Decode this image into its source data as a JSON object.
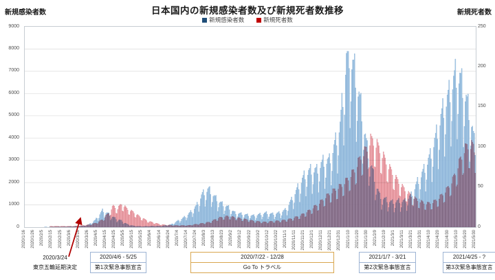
{
  "header": {
    "title": "日本国内の新規感染者数及び新規死者数推移",
    "left_axis_title": "新規感染者数",
    "right_axis_title": "新規死者数"
  },
  "legend": {
    "items": [
      {
        "label": "新規感染者数",
        "color": "#1F4E79"
      },
      {
        "label": "新規死者数",
        "color": "#C00000"
      }
    ]
  },
  "arrow_color": "#B00000",
  "chart_data": {
    "type": "bar",
    "title": "日本国内の新規感染者数及び新規死者数推移",
    "legend_position": "top-center",
    "grid": "horizontal-major-left-axis",
    "x_start": "2020/1/16",
    "x_end": "2021/5/30",
    "x_tick_interval_days": 10,
    "x_tick_labels": [
      "2020/1/16",
      "2020/1/26",
      "2020/2/5",
      "2020/2/15",
      "2020/2/25",
      "2020/3/6",
      "2020/3/16",
      "2020/3/26",
      "2020/4/5",
      "2020/4/15",
      "2020/4/25",
      "2020/5/5",
      "2020/5/15",
      "2020/5/25",
      "2020/6/4",
      "2020/6/14",
      "2020/6/24",
      "2020/7/4",
      "2020/7/14",
      "2020/7/24",
      "2020/8/3",
      "2020/8/13",
      "2020/8/23",
      "2020/9/2",
      "2020/9/12",
      "2020/9/22",
      "2020/10/2",
      "2020/10/12",
      "2020/10/22",
      "2020/11/1",
      "2020/11/11",
      "2020/11/21",
      "2020/12/1",
      "2020/12/11",
      "2020/12/21",
      "2020/12/31",
      "2021/1/10",
      "2021/1/20",
      "2021/1/30",
      "2021/2/9",
      "2021/2/19",
      "2021/3/1",
      "2021/3/11",
      "2021/3/21",
      "2021/3/31",
      "2021/4/10",
      "2021/4/20",
      "2021/4/30",
      "2021/5/10",
      "2021/5/20",
      "2021/5/30"
    ],
    "left_axis": {
      "label": "新規感染者数",
      "range": [
        0,
        9000
      ],
      "ticks": [
        0,
        1000,
        2000,
        3000,
        4000,
        5000,
        6000,
        7000,
        8000,
        9000
      ]
    },
    "right_axis": {
      "label": "新規死者数",
      "range": [
        0,
        250
      ],
      "ticks": [
        0,
        50,
        100,
        150,
        200,
        250
      ]
    },
    "series": [
      {
        "name": "新規感染者数",
        "axis": "left",
        "bar_fill": "#AACBE7",
        "bar_stroke": "#6FA0CC",
        "max_clip": 7900,
        "weekly_pattern": [
          0.62,
          0.8,
          1.02,
          1.1,
          1.12,
          1.18,
          0.98
        ],
        "anchors": [
          [
            "2020/1/16",
            1
          ],
          [
            "2020/1/31",
            3
          ],
          [
            "2020/2/10",
            8
          ],
          [
            "2020/2/20",
            15
          ],
          [
            "2020/3/1",
            15
          ],
          [
            "2020/3/10",
            30
          ],
          [
            "2020/3/20",
            45
          ],
          [
            "2020/3/27",
            110
          ],
          [
            "2020/4/3",
            300
          ],
          [
            "2020/4/11",
            700
          ],
          [
            "2020/4/18",
            550
          ],
          [
            "2020/4/25",
            370
          ],
          [
            "2020/5/2",
            270
          ],
          [
            "2020/5/9",
            110
          ],
          [
            "2020/5/16",
            50
          ],
          [
            "2020/5/25",
            25
          ],
          [
            "2020/6/5",
            45
          ],
          [
            "2020/6/15",
            45
          ],
          [
            "2020/6/26",
            105
          ],
          [
            "2020/7/4",
            270
          ],
          [
            "2020/7/10",
            390
          ],
          [
            "2020/7/17",
            600
          ],
          [
            "2020/7/24",
            880
          ],
          [
            "2020/7/31",
            1400
          ],
          [
            "2020/8/7",
            1600
          ],
          [
            "2020/8/14",
            1250
          ],
          [
            "2020/8/21",
            1000
          ],
          [
            "2020/8/29",
            830
          ],
          [
            "2020/9/5",
            600
          ],
          [
            "2020/9/12",
            560
          ],
          [
            "2020/9/19",
            510
          ],
          [
            "2020/9/26",
            480
          ],
          [
            "2020/10/3",
            540
          ],
          [
            "2020/10/10",
            600
          ],
          [
            "2020/10/17",
            550
          ],
          [
            "2020/10/24",
            600
          ],
          [
            "2020/10/31",
            720
          ],
          [
            "2020/11/7",
            1150
          ],
          [
            "2020/11/14",
            1660
          ],
          [
            "2020/11/21",
            2150
          ],
          [
            "2020/11/28",
            2400
          ],
          [
            "2020/12/5",
            2400
          ],
          [
            "2020/12/12",
            2750
          ],
          [
            "2020/12/19",
            2800
          ],
          [
            "2020/12/26",
            3600
          ],
          [
            "2020/12/31",
            4300
          ],
          [
            "2021/1/8",
            7500
          ],
          [
            "2021/1/16",
            6600
          ],
          [
            "2021/1/23",
            5100
          ],
          [
            "2021/1/30",
            3300
          ],
          [
            "2021/2/6",
            2200
          ],
          [
            "2021/2/13",
            1300
          ],
          [
            "2021/2/20",
            1150
          ],
          [
            "2021/2/27",
            1050
          ],
          [
            "2021/3/6",
            1100
          ],
          [
            "2021/3/13",
            1100
          ],
          [
            "2021/3/20",
            1350
          ],
          [
            "2021/3/27",
            1900
          ],
          [
            "2021/4/3",
            2400
          ],
          [
            "2021/4/10",
            3000
          ],
          [
            "2021/4/17",
            3900
          ],
          [
            "2021/4/24",
            4900
          ],
          [
            "2021/5/1",
            5600
          ],
          [
            "2021/5/8",
            6400
          ],
          [
            "2021/5/13",
            6300
          ],
          [
            "2021/5/20",
            5400
          ],
          [
            "2021/5/26",
            4400
          ],
          [
            "2021/5/30",
            3300
          ]
        ]
      },
      {
        "name": "新規死者数",
        "axis": "right",
        "bar_fill": "#F5A9B0",
        "bar_stroke": "#D06A74",
        "max_clip": 122,
        "weekly_pattern": [
          0.75,
          1.0,
          1.12,
          1.1,
          1.08,
          1.0,
          0.75
        ],
        "anchors": [
          [
            "2020/1/16",
            0
          ],
          [
            "2020/2/12",
            0
          ],
          [
            "2020/2/13",
            1
          ],
          [
            "2020/2/28",
            1
          ],
          [
            "2020/3/10",
            1
          ],
          [
            "2020/3/20",
            2
          ],
          [
            "2020/3/28",
            3
          ],
          [
            "2020/4/4",
            5
          ],
          [
            "2020/4/11",
            9
          ],
          [
            "2020/4/18",
            17
          ],
          [
            "2020/4/23",
            25
          ],
          [
            "2020/4/28",
            22
          ],
          [
            "2020/5/2",
            28
          ],
          [
            "2020/5/8",
            22
          ],
          [
            "2020/5/15",
            18
          ],
          [
            "2020/5/23",
            12
          ],
          [
            "2020/6/1",
            7
          ],
          [
            "2020/6/15",
            3
          ],
          [
            "2020/7/1",
            2
          ],
          [
            "2020/7/15",
            2
          ],
          [
            "2020/7/28",
            4
          ],
          [
            "2020/8/8",
            6
          ],
          [
            "2020/8/18",
            11
          ],
          [
            "2020/8/28",
            13
          ],
          [
            "2020/9/8",
            11
          ],
          [
            "2020/9/18",
            9
          ],
          [
            "2020/9/28",
            7
          ],
          [
            "2020/10/8",
            6
          ],
          [
            "2020/10/18",
            7
          ],
          [
            "2020/10/28",
            8
          ],
          [
            "2020/11/7",
            10
          ],
          [
            "2020/11/17",
            14
          ],
          [
            "2020/11/27",
            20
          ],
          [
            "2020/12/7",
            28
          ],
          [
            "2020/12/17",
            38
          ],
          [
            "2020/12/27",
            46
          ],
          [
            "2021/1/2",
            50
          ],
          [
            "2021/1/9",
            58
          ],
          [
            "2021/1/16",
            68
          ],
          [
            "2021/1/23",
            84
          ],
          [
            "2021/1/30",
            94
          ],
          [
            "2021/2/3",
            104
          ],
          [
            "2021/2/10",
            98
          ],
          [
            "2021/2/17",
            84
          ],
          [
            "2021/2/24",
            70
          ],
          [
            "2021/3/3",
            58
          ],
          [
            "2021/3/10",
            48
          ],
          [
            "2021/3/17",
            40
          ],
          [
            "2021/3/24",
            34
          ],
          [
            "2021/3/31",
            30
          ],
          [
            "2021/4/7",
            28
          ],
          [
            "2021/4/14",
            30
          ],
          [
            "2021/4/21",
            36
          ],
          [
            "2021/4/28",
            44
          ],
          [
            "2021/5/5",
            56
          ],
          [
            "2021/5/12",
            76
          ],
          [
            "2021/5/18",
            92
          ],
          [
            "2021/5/23",
            98
          ],
          [
            "2021/5/28",
            96
          ],
          [
            "2021/5/30",
            90
          ]
        ]
      }
    ]
  },
  "annotations": {
    "olympics": {
      "line1": "2020/3/24",
      "line2": "東京五輪延期決定"
    },
    "soe1": {
      "line1": "2020/4/6 - 5/25",
      "line2": "第1次緊急事態宣言",
      "border": "#9CB3D3"
    },
    "goto": {
      "line1": "2020/7/22 - 12/28",
      "line2": "Go To トラベル",
      "border": "#D9A64E"
    },
    "soe2": {
      "line1": "2021/1/7 - 3/21",
      "line2": "第2次緊急事態宣言",
      "border": "#9CB3D3"
    },
    "soe3": {
      "line1": "2021/4/25 - ?",
      "line2": "第3次緊急事態宣言",
      "border": "#9CB3D3"
    }
  }
}
